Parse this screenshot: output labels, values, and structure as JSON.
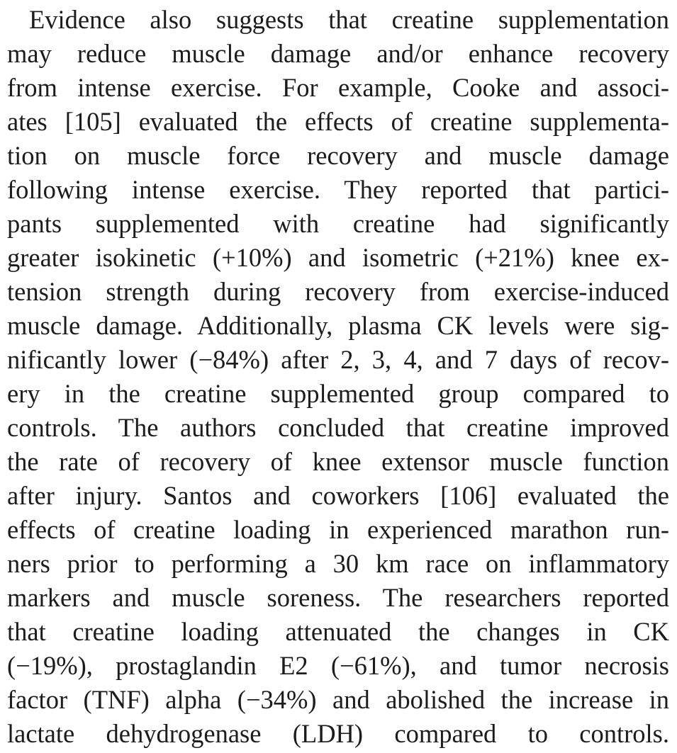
{
  "paragraph": {
    "lines": [
      "Evidence also suggests that creatine supplementation",
      "may reduce muscle damage and/or enhance recovery",
      "from intense exercise. For example, Cooke and associ-",
      "ates [105] evaluated the effects of creatine supplementa-",
      "tion on muscle force recovery and muscle damage",
      "following intense exercise. They reported that partici-",
      "pants supplemented with creatine had significantly",
      "greater isokinetic (+10%) and isometric (+21%) knee ex-",
      "tension strength during recovery from exercise-induced",
      "muscle damage. Additionally, plasma CK levels were sig-",
      "nificantly lower (−84%) after 2, 3, 4, and 7 days of recov-",
      "ery in the creatine supplemented group compared to",
      "controls. The authors concluded that creatine improved",
      "the rate of recovery of knee extensor muscle function",
      "after injury. Santos and coworkers [106] evaluated the",
      "effects of creatine loading in experienced marathon run-",
      "ners prior to performing a 30 km race on inflammatory",
      "markers and muscle soreness. The researchers reported",
      "that creatine loading attenuated the changes in CK",
      "(−19%), prostaglandin E2 (−61%), and tumor necrosis",
      "factor (TNF) alpha (−34%) and abolished the increase in",
      "lactate dehydrogenase (LDH) compared to controls."
    ]
  }
}
